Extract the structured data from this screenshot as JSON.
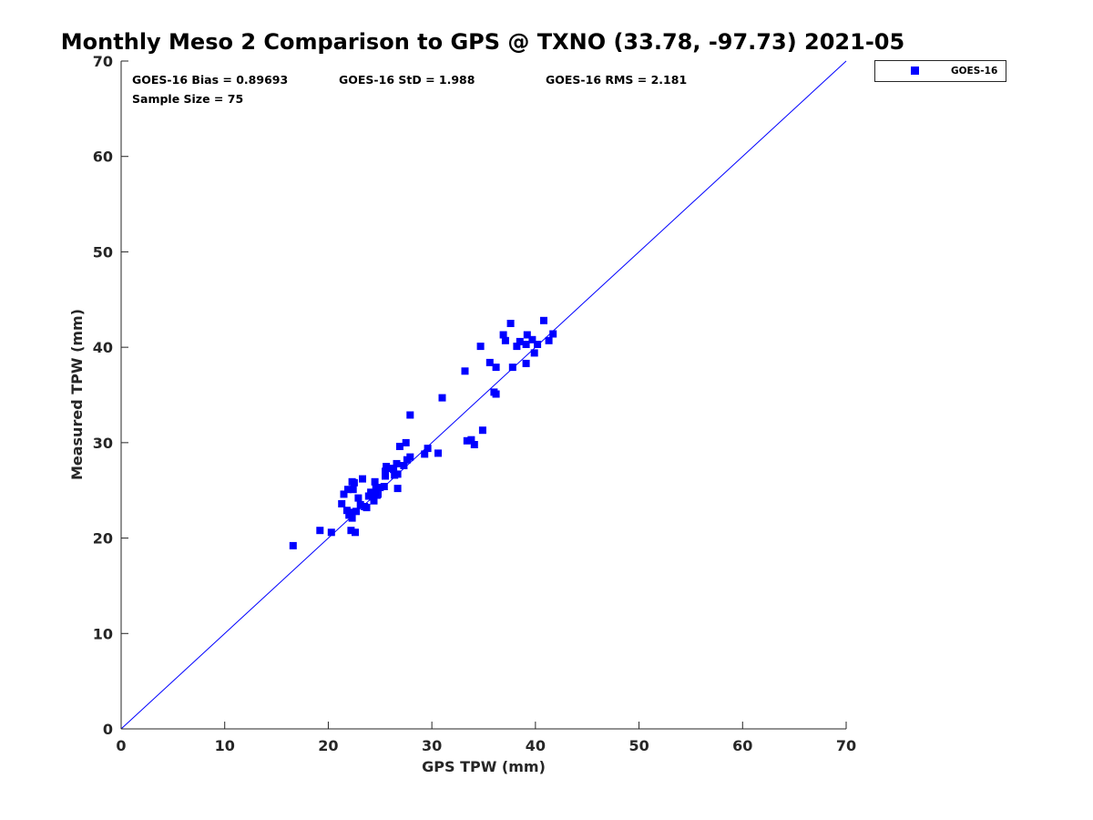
{
  "chart_data": {
    "type": "scatter",
    "title": "Monthly Meso 2 Comparison to GPS @ TXNO (33.78, -97.73) 2021-05",
    "xlabel": "GPS TPW (mm)",
    "ylabel": "Measured TPW (mm)",
    "xlim": [
      0,
      70
    ],
    "ylim": [
      0,
      70
    ],
    "x_ticks": [
      "0",
      "10",
      "20",
      "30",
      "40",
      "50",
      "60",
      "70"
    ],
    "y_ticks": [
      "0",
      "10",
      "20",
      "30",
      "40",
      "50",
      "60",
      "70"
    ],
    "grid": false,
    "legend_position": "outside top-right",
    "reference_line": {
      "type": "one-to-one",
      "color": "#0000ff"
    },
    "stats": [
      {
        "text": "GOES-16 Bias = 0.89693"
      },
      {
        "text": "GOES-16 StD = 1.988"
      },
      {
        "text": "GOES-16 RMS = 2.181"
      },
      {
        "text": "Sample Size = 75"
      }
    ],
    "series": [
      {
        "name": "GOES-16",
        "color": "#0000ff",
        "marker": "square",
        "points": [
          [
            16.6,
            19.2
          ],
          [
            19.2,
            20.8
          ],
          [
            20.3,
            20.6
          ],
          [
            21.3,
            23.6
          ],
          [
            21.5,
            24.6
          ],
          [
            21.8,
            22.9
          ],
          [
            21.9,
            25.1
          ],
          [
            22.0,
            22.4
          ],
          [
            22.1,
            22.7
          ],
          [
            22.2,
            20.8
          ],
          [
            22.3,
            25.9
          ],
          [
            22.3,
            22.1
          ],
          [
            22.4,
            25.1
          ],
          [
            22.5,
            25.8
          ],
          [
            22.6,
            20.6
          ],
          [
            22.7,
            22.8
          ],
          [
            22.9,
            24.2
          ],
          [
            23.1,
            23.5
          ],
          [
            23.3,
            26.2
          ],
          [
            23.5,
            23.3
          ],
          [
            23.7,
            23.2
          ],
          [
            23.9,
            24.4
          ],
          [
            24.1,
            24.8
          ],
          [
            24.3,
            24.3
          ],
          [
            24.4,
            23.9
          ],
          [
            24.5,
            25.9
          ],
          [
            24.6,
            25.3
          ],
          [
            24.7,
            24.5
          ],
          [
            24.8,
            24.6
          ],
          [
            25.0,
            25.3
          ],
          [
            25.4,
            25.4
          ],
          [
            25.5,
            26.5
          ],
          [
            25.5,
            27.0
          ],
          [
            25.6,
            27.5
          ],
          [
            25.9,
            27.3
          ],
          [
            26.3,
            27.2
          ],
          [
            26.4,
            26.6
          ],
          [
            26.6,
            27.8
          ],
          [
            26.7,
            26.7
          ],
          [
            26.7,
            25.2
          ],
          [
            26.9,
            29.6
          ],
          [
            27.3,
            27.6
          ],
          [
            27.5,
            30.0
          ],
          [
            27.6,
            28.2
          ],
          [
            27.9,
            28.5
          ],
          [
            27.9,
            32.9
          ],
          [
            29.3,
            28.8
          ],
          [
            29.6,
            29.4
          ],
          [
            30.6,
            28.9
          ],
          [
            31.0,
            34.7
          ],
          [
            33.2,
            37.5
          ],
          [
            33.4,
            30.2
          ],
          [
            33.8,
            30.3
          ],
          [
            34.1,
            29.8
          ],
          [
            34.7,
            40.1
          ],
          [
            34.9,
            31.3
          ],
          [
            35.6,
            38.4
          ],
          [
            36.0,
            35.3
          ],
          [
            36.2,
            35.1
          ],
          [
            36.2,
            37.9
          ],
          [
            36.9,
            41.3
          ],
          [
            37.1,
            40.7
          ],
          [
            37.6,
            42.5
          ],
          [
            37.8,
            37.9
          ],
          [
            38.2,
            40.1
          ],
          [
            38.5,
            40.6
          ],
          [
            39.1,
            38.3
          ],
          [
            39.1,
            40.3
          ],
          [
            39.2,
            41.3
          ],
          [
            39.7,
            40.8
          ],
          [
            39.9,
            39.4
          ],
          [
            40.2,
            40.3
          ],
          [
            40.8,
            42.8
          ],
          [
            41.3,
            40.7
          ],
          [
            41.7,
            41.4
          ]
        ]
      }
    ]
  }
}
